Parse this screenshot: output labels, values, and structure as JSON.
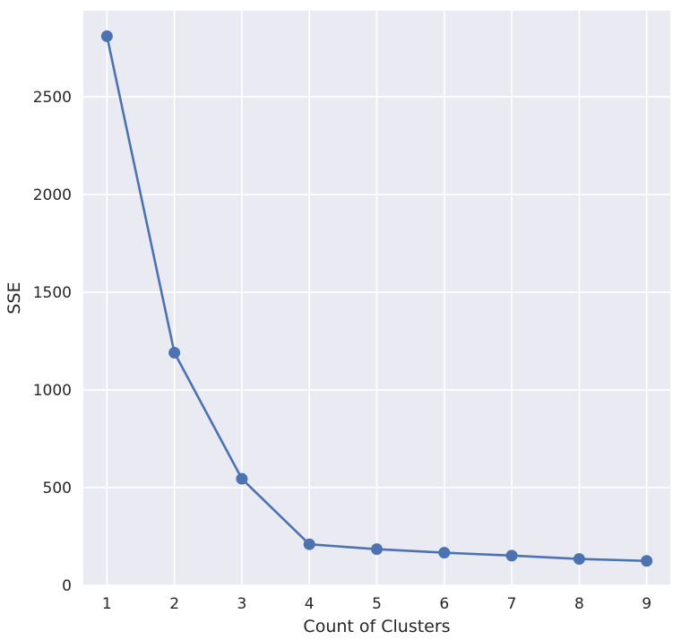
{
  "chart_data": {
    "type": "line",
    "title": "",
    "xlabel": "Count of Clusters",
    "ylabel": "SSE",
    "x": [
      1,
      2,
      3,
      4,
      5,
      6,
      7,
      8,
      9
    ],
    "series": [
      {
        "values": [
          2810,
          1190,
          545,
          210,
          185,
          167,
          152,
          135,
          125
        ]
      }
    ],
    "xticks": [
      "1",
      "2",
      "3",
      "4",
      "5",
      "6",
      "7",
      "8",
      "9"
    ],
    "yticks": [
      "0",
      "500",
      "1000",
      "1500",
      "2000",
      "2500"
    ],
    "xlim": [
      0.65,
      9.35
    ],
    "ylim": [
      0,
      2940
    ],
    "grid": true,
    "legend": "none",
    "colors": {
      "series": "#4c72b0",
      "background": "#eaeaf2",
      "grid": "#ffffff",
      "text": "#262626"
    }
  }
}
